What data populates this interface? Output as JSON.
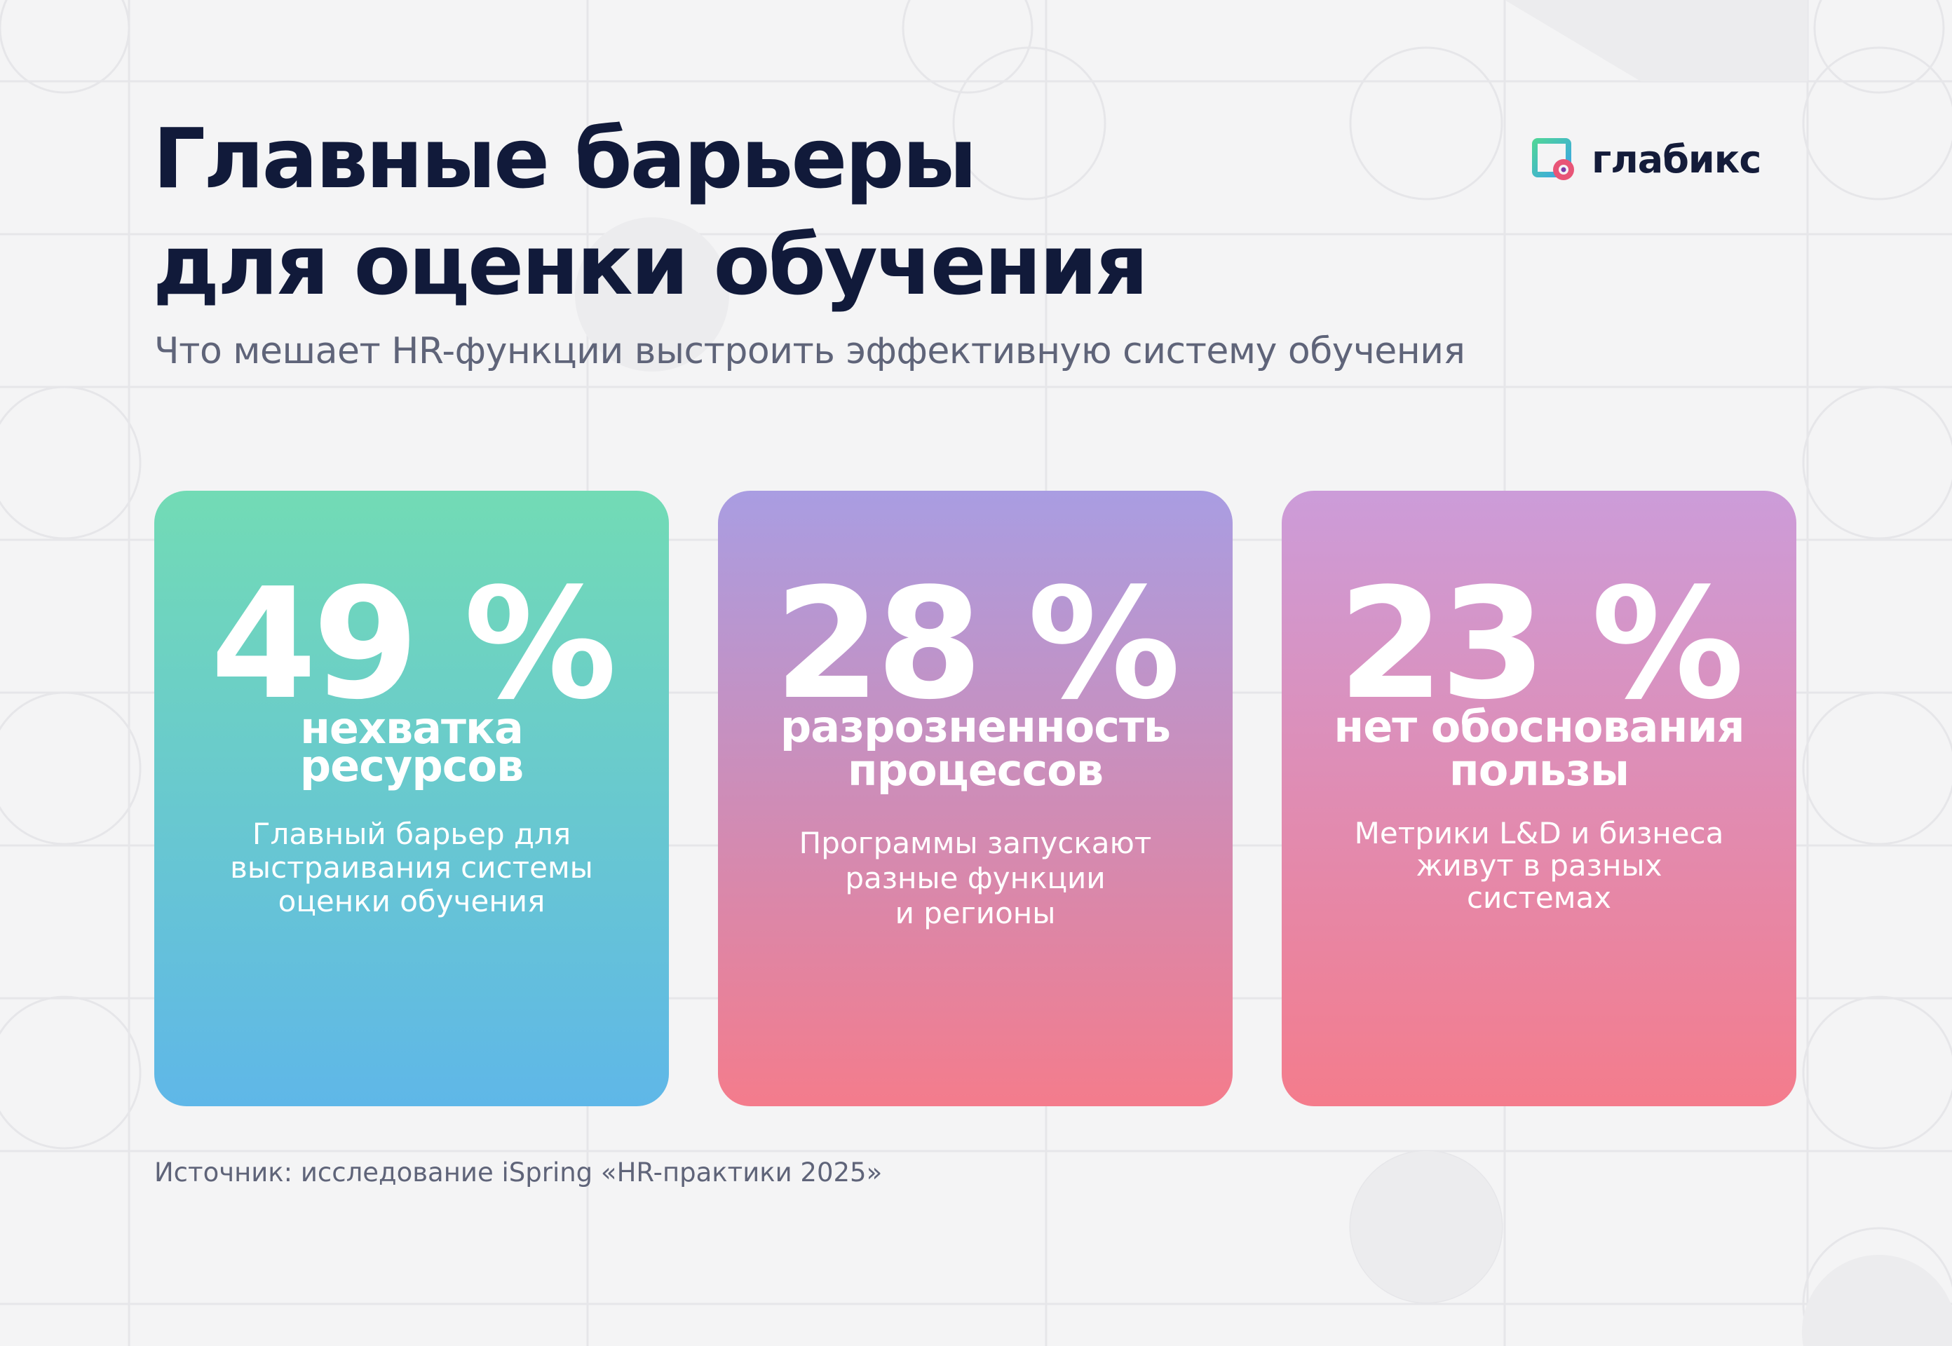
{
  "brand": {
    "name": "глабикс",
    "logo_icon": "glabix-logo-icon"
  },
  "header": {
    "title_line1": "Главные барьеры",
    "title_line2": "для оценки обучения",
    "subtitle": "Что мешает HR-функции выстроить эффективную систему обучения"
  },
  "cards": [
    {
      "value": "49 %",
      "label_line1": "нехватка",
      "label_line2": "ресурсов",
      "desc_line1": "Главный барьер для",
      "desc_line2": "выстраивания системы",
      "desc_line3": "оценки обучения",
      "gradient_top": "#72dbb5",
      "gradient_bottom": "#5fb7e8"
    },
    {
      "value": "28 %",
      "label_line1": "разрозненность",
      "label_line2": "процессов",
      "desc_line1": "Программы запускают",
      "desc_line2": "разные функции",
      "desc_line3": "и регионы",
      "gradient_top": "#a99de2",
      "gradient_bottom": "#f47c8c"
    },
    {
      "value": "23 %",
      "label_line1": "нет обоснования",
      "label_line2": "пользы",
      "desc_line1": "Метрики L&D и бизнеса",
      "desc_line2": "живут в разных",
      "desc_line3": "системах",
      "gradient_top": "#cc9cd9",
      "gradient_bottom": "#f47c8c"
    }
  ],
  "footer": {
    "source": "Источник: исследование iSpring «HR-практики 2025»"
  },
  "colors": {
    "background": "#f4f4f5",
    "title": "#111a3a",
    "muted_text": "#5f6479"
  }
}
